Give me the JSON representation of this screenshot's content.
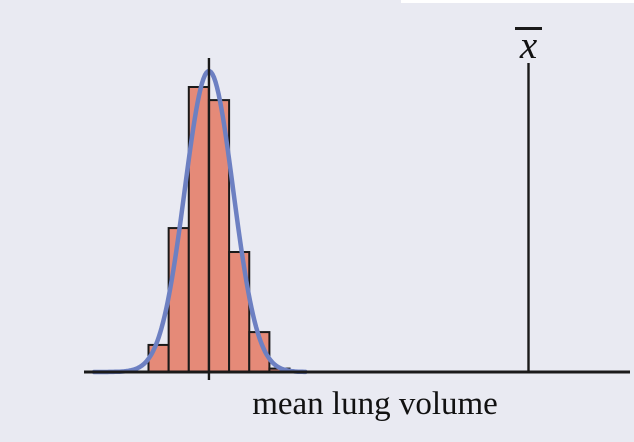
{
  "colors": {
    "background": "#e9eaf2",
    "top_strip": "#ffffff",
    "histogram_fill": "#e58a78",
    "histogram_stroke": "#1a1a1a",
    "curve": "#6d80c2",
    "axis": "#1a1a1a",
    "text": "#111111"
  },
  "chart_data": {
    "type": "histogram",
    "title": "",
    "xlabel": "mean lung volume",
    "ylabel": "",
    "sample_mean_label": "x",
    "sample_mean_label_overline": true,
    "axes": {
      "x_tick_labels": [],
      "y_tick_labels": [],
      "grid": false
    },
    "bins": {
      "count": 7,
      "relative_heights": [
        0.095,
        0.505,
        1.0,
        0.954,
        0.421,
        0.14,
        0.012
      ]
    },
    "overlay_curve": {
      "shape": "normal",
      "peak_relative_height": 1.056,
      "sigma_in_bins": 1.2,
      "center_bin_edge_index": 3
    },
    "markers": {
      "distribution_center_line": true,
      "sample_mean_line": true
    }
  }
}
